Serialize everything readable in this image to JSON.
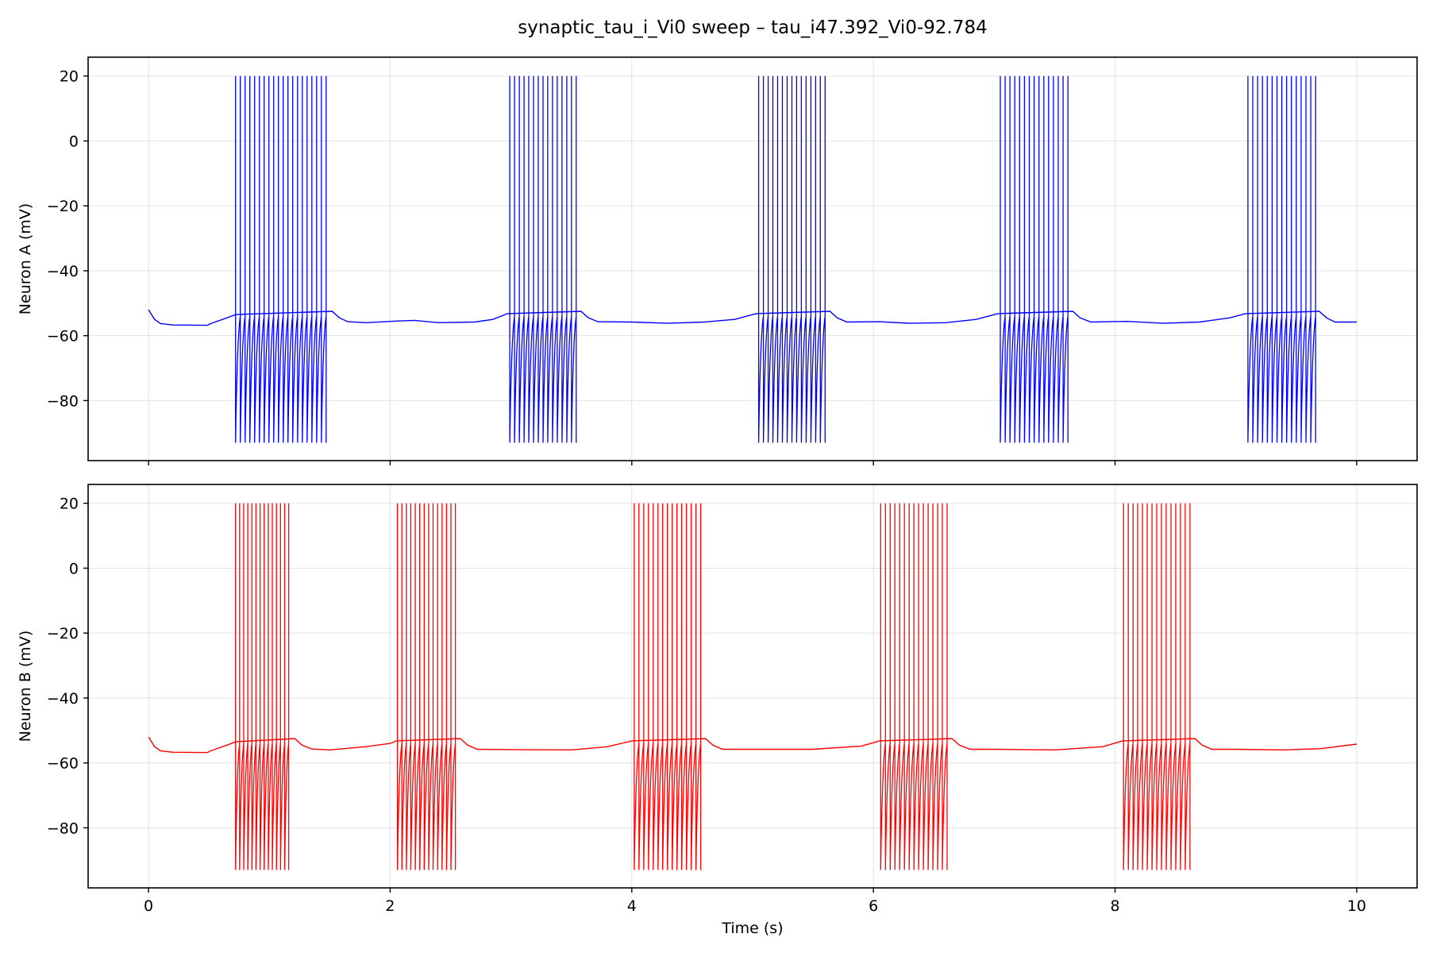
{
  "chart_data": {
    "type": "line",
    "title": "synaptic_tau_i_Vi0 sweep – tau_i47.392_Vi0-92.784",
    "xlabel": "Time (s)",
    "xlim": [
      -0.5,
      10.5
    ],
    "x_ticks": [
      0,
      2,
      4,
      6,
      8,
      10
    ],
    "x_tick_labels": [
      "0",
      "2",
      "4",
      "6",
      "8",
      "10"
    ],
    "grid": true,
    "shared_x": true,
    "panels": [
      {
        "ylabel": "Neuron A (mV)",
        "ylim": [
          -98.5,
          25.8
        ],
        "y_ticks": [
          20,
          0,
          -20,
          -40,
          -60,
          -80
        ],
        "y_tick_labels": [
          "20",
          "0",
          "−20",
          "−40",
          "−60",
          "−80"
        ],
        "series": [
          {
            "color": "#0000ff",
            "resting_trace": [
              [
                0.0,
                -52
              ],
              [
                0.05,
                -55
              ],
              [
                0.1,
                -56.3
              ],
              [
                0.2,
                -56.7
              ],
              [
                0.49,
                -56.8
              ],
              [
                0.5,
                -56.5
              ],
              [
                0.55,
                -55.8
              ],
              [
                0.65,
                -54.5
              ],
              [
                0.72,
                -53.5
              ],
              [
                1.52,
                -52.5
              ],
              [
                1.58,
                -54.5
              ],
              [
                1.65,
                -55.7
              ],
              [
                1.8,
                -56
              ],
              [
                2.05,
                -55.5
              ],
              [
                2.2,
                -55.3
              ],
              [
                2.4,
                -56
              ],
              [
                2.7,
                -55.8
              ],
              [
                2.85,
                -55
              ],
              [
                2.97,
                -53.2
              ],
              [
                3.58,
                -52.5
              ],
              [
                3.64,
                -54.5
              ],
              [
                3.72,
                -55.7
              ],
              [
                4.0,
                -55.8
              ],
              [
                4.3,
                -56.2
              ],
              [
                4.6,
                -55.8
              ],
              [
                4.85,
                -55
              ],
              [
                5.03,
                -53.2
              ],
              [
                5.64,
                -52.5
              ],
              [
                5.7,
                -54.5
              ],
              [
                5.78,
                -55.8
              ],
              [
                6.05,
                -55.7
              ],
              [
                6.3,
                -56.2
              ],
              [
                6.6,
                -56
              ],
              [
                6.85,
                -55
              ],
              [
                7.03,
                -53.2
              ],
              [
                7.65,
                -52.5
              ],
              [
                7.71,
                -54.5
              ],
              [
                7.8,
                -55.8
              ],
              [
                8.1,
                -55.6
              ],
              [
                8.4,
                -56.2
              ],
              [
                8.7,
                -55.8
              ],
              [
                8.95,
                -54.5
              ],
              [
                9.08,
                -53.2
              ],
              [
                9.69,
                -52.5
              ],
              [
                9.75,
                -54.5
              ],
              [
                9.82,
                -55.8
              ],
              [
                10.0,
                -55.8
              ]
            ],
            "bursts": [
              {
                "start": 0.72,
                "end": 1.47,
                "spikes": 20,
                "peak_mV": 20,
                "trough_mV": -93
              },
              {
                "start": 2.99,
                "end": 3.54,
                "spikes": 15,
                "peak_mV": 20,
                "trough_mV": -93
              },
              {
                "start": 5.05,
                "end": 5.6,
                "spikes": 15,
                "peak_mV": 20,
                "trough_mV": -93
              },
              {
                "start": 7.05,
                "end": 7.61,
                "spikes": 15,
                "peak_mV": 20,
                "trough_mV": -93
              },
              {
                "start": 9.1,
                "end": 9.66,
                "spikes": 15,
                "peak_mV": 20,
                "trough_mV": -93
              }
            ]
          }
        ]
      },
      {
        "ylabel": "Neuron B (mV)",
        "ylim": [
          -98.5,
          25.8
        ],
        "y_ticks": [
          20,
          0,
          -20,
          -40,
          -60,
          -80
        ],
        "y_tick_labels": [
          "20",
          "0",
          "−20",
          "−40",
          "−60",
          "−80"
        ],
        "series": [
          {
            "color": "#ff0000",
            "resting_trace": [
              [
                0.0,
                -52
              ],
              [
                0.05,
                -55
              ],
              [
                0.1,
                -56.3
              ],
              [
                0.2,
                -56.7
              ],
              [
                0.49,
                -56.8
              ],
              [
                0.5,
                -56.5
              ],
              [
                0.55,
                -55.8
              ],
              [
                0.65,
                -54.5
              ],
              [
                0.72,
                -53.5
              ],
              [
                1.21,
                -52.5
              ],
              [
                1.27,
                -54.5
              ],
              [
                1.35,
                -55.7
              ],
              [
                1.5,
                -56
              ],
              [
                1.8,
                -55
              ],
              [
                2.0,
                -54
              ],
              [
                2.05,
                -53.2
              ],
              [
                2.58,
                -52.5
              ],
              [
                2.64,
                -54.5
              ],
              [
                2.72,
                -55.8
              ],
              [
                3.0,
                -55.9
              ],
              [
                3.5,
                -56
              ],
              [
                3.8,
                -55
              ],
              [
                4.0,
                -53.2
              ],
              [
                4.61,
                -52.5
              ],
              [
                4.67,
                -54.5
              ],
              [
                4.75,
                -55.8
              ],
              [
                5.0,
                -55.8
              ],
              [
                5.5,
                -55.8
              ],
              [
                5.9,
                -54.8
              ],
              [
                6.05,
                -53.2
              ],
              [
                6.65,
                -52.5
              ],
              [
                6.71,
                -54.5
              ],
              [
                6.8,
                -55.8
              ],
              [
                7.0,
                -55.8
              ],
              [
                7.5,
                -56
              ],
              [
                7.9,
                -55
              ],
              [
                8.06,
                -53.2
              ],
              [
                8.66,
                -52.5
              ],
              [
                8.72,
                -54.5
              ],
              [
                8.8,
                -55.8
              ],
              [
                9.0,
                -55.8
              ],
              [
                9.4,
                -56
              ],
              [
                9.7,
                -55.6
              ],
              [
                10.0,
                -54.2
              ]
            ],
            "bursts": [
              {
                "start": 0.72,
                "end": 1.16,
                "spikes": 14,
                "peak_mV": 20,
                "trough_mV": -93
              },
              {
                "start": 2.06,
                "end": 2.54,
                "spikes": 14,
                "peak_mV": 20,
                "trough_mV": -93
              },
              {
                "start": 4.02,
                "end": 4.57,
                "spikes": 15,
                "peak_mV": 20,
                "trough_mV": -93
              },
              {
                "start": 6.06,
                "end": 6.61,
                "spikes": 15,
                "peak_mV": 20,
                "trough_mV": -93
              },
              {
                "start": 8.07,
                "end": 8.62,
                "spikes": 15,
                "peak_mV": 20,
                "trough_mV": -93
              }
            ]
          }
        ]
      }
    ]
  }
}
